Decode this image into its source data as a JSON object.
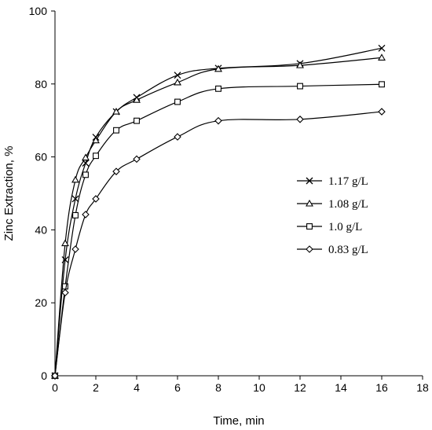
{
  "chart_data": {
    "type": "line",
    "xlabel": "Time, min",
    "ylabel": "Zinc Extraction, %",
    "xlim": [
      0,
      18
    ],
    "ylim": [
      0,
      100
    ],
    "xticks": [
      0,
      2,
      4,
      6,
      8,
      10,
      12,
      14,
      16,
      18
    ],
    "yticks": [
      0,
      20,
      40,
      60,
      80,
      100
    ],
    "grid": false,
    "legend_position": "right",
    "series": [
      {
        "name": "1.17 g/L",
        "marker": "x",
        "x": [
          0,
          0.5,
          1,
          1.5,
          2,
          3,
          4,
          6,
          8,
          12,
          16
        ],
        "y": [
          0,
          31.8,
          48.5,
          58.3,
          65.4,
          72.4,
          76.3,
          82.4,
          84.3,
          85.6,
          89.8
        ]
      },
      {
        "name": "1.08 g/L",
        "marker": "triangle",
        "x": [
          0,
          0.5,
          1,
          1.5,
          2,
          3,
          4,
          6,
          8,
          12,
          16
        ],
        "y": [
          0,
          36.3,
          53.7,
          59.8,
          64.5,
          72.4,
          75.6,
          80.4,
          84.1,
          85.1,
          87.2
        ]
      },
      {
        "name": "1.0 g/L",
        "marker": "square",
        "x": [
          0,
          0.5,
          1,
          1.5,
          2,
          3,
          4,
          6,
          8,
          12,
          16
        ],
        "y": [
          0,
          24.5,
          44.0,
          55.1,
          60.3,
          67.3,
          69.9,
          75.1,
          78.7,
          79.4,
          79.9
        ]
      },
      {
        "name": "0.83 g/L",
        "marker": "diamond",
        "x": [
          0,
          0.5,
          1,
          1.5,
          2,
          3,
          4,
          6,
          8,
          12,
          16
        ],
        "y": [
          0,
          22.8,
          34.7,
          44.2,
          48.5,
          56.0,
          59.4,
          65.5,
          69.9,
          70.3,
          72.4
        ]
      }
    ]
  }
}
